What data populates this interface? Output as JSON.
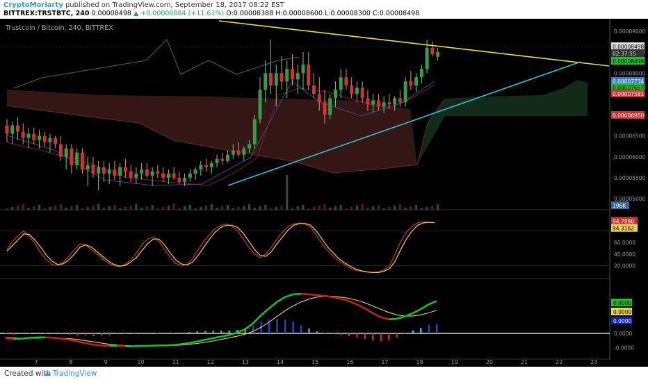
{
  "header": {
    "author": "CryptoMoriarty",
    "published": "published on TradingView.com, September 18, 2017 08:22 EST",
    "symbol": "BITTREX:TRSTBTC, 240",
    "change": "▲ +0.00000884 (+11.61%)",
    "ohlc": "O:0.00008388  H:0.00008600  L:0.00008300  C:0.00008498"
  },
  "footer": {
    "created": "Created with",
    "brand": "TradingView"
  },
  "colors": {
    "up": "#3a9a4c",
    "down": "#d0322f",
    "trend_upper": "#e8e040",
    "trend_lower": "#2ec4d6",
    "cloud_red": "#3a1a16",
    "cloud_green": "#14301c",
    "macd_line": "#19c02a",
    "signal_line": "#e8d44a",
    "stoch_k": "#d0322f",
    "stoch_d": "#e8d44a"
  },
  "chart_data": [
    {
      "type": "candlestick",
      "title": "Trustcoin / Bitcoin, 240, BITTREX",
      "x_ticks": [
        "7",
        "8",
        "9",
        "10",
        "11",
        "12",
        "13",
        "14",
        "15",
        "16",
        "17",
        "18",
        "19",
        "20",
        "21",
        "22",
        "23"
      ],
      "y_ticks": [
        "0.00009000",
        "0.00008500",
        "0.00008000",
        "0.00007500",
        "0.00007000",
        "0.00006500",
        "0.00006000",
        "0.00005500",
        "0.00005000"
      ],
      "ylim": [
        4.92e-05,
        9.05e-05
      ],
      "price_labels": [
        {
          "text": "0.00008498",
          "kind": "current"
        },
        {
          "text": "02:37:55",
          "kind": "countdown"
        },
        {
          "text": "0.00008498",
          "kind": "green"
        },
        {
          "text": "0.00007734",
          "kind": "blue"
        },
        {
          "text": "0.00007657",
          "kind": "green"
        },
        {
          "text": "0.00007581",
          "kind": "red"
        },
        {
          "text": "0.00006950",
          "kind": "red"
        }
      ],
      "volume_label": "196K",
      "candles_ohlc": [
        [
          6.75,
          6.9,
          6.35,
          6.55
        ],
        [
          6.55,
          6.85,
          6.3,
          6.75
        ],
        [
          6.75,
          6.95,
          6.4,
          6.6
        ],
        [
          6.6,
          6.8,
          6.3,
          6.45
        ],
        [
          6.45,
          6.7,
          6.2,
          6.55
        ],
        [
          6.55,
          6.7,
          6.3,
          6.4
        ],
        [
          6.4,
          6.65,
          6.2,
          6.5
        ],
        [
          6.5,
          6.6,
          6.25,
          6.35
        ],
        [
          6.35,
          6.55,
          6.1,
          6.45
        ],
        [
          6.45,
          6.5,
          6.2,
          6.3
        ],
        [
          6.3,
          6.5,
          5.9,
          6.0
        ],
        [
          6.0,
          6.3,
          5.7,
          6.2
        ],
        [
          6.2,
          6.3,
          5.6,
          5.8
        ],
        [
          5.8,
          6.2,
          5.7,
          6.1
        ],
        [
          6.1,
          6.2,
          5.6,
          5.7
        ],
        [
          5.7,
          6.0,
          5.3,
          5.8
        ],
        [
          5.8,
          6.0,
          5.5,
          5.6
        ],
        [
          5.6,
          5.9,
          5.2,
          5.75
        ],
        [
          5.75,
          5.9,
          5.4,
          5.6
        ],
        [
          5.6,
          5.85,
          5.35,
          5.7
        ],
        [
          5.7,
          5.9,
          5.45,
          5.55
        ],
        [
          5.55,
          5.85,
          5.3,
          5.75
        ],
        [
          5.75,
          5.95,
          5.5,
          5.65
        ],
        [
          5.65,
          5.8,
          5.4,
          5.5
        ],
        [
          5.5,
          5.75,
          5.35,
          5.6
        ],
        [
          5.6,
          5.85,
          5.45,
          5.7
        ],
        [
          5.7,
          5.85,
          5.5,
          5.55
        ],
        [
          5.55,
          5.75,
          5.3,
          5.65
        ],
        [
          5.65,
          5.8,
          5.5,
          5.6
        ],
        [
          5.6,
          5.75,
          5.4,
          5.5
        ],
        [
          5.5,
          5.7,
          5.35,
          5.6
        ],
        [
          5.6,
          5.75,
          5.45,
          5.5
        ],
        [
          5.5,
          5.65,
          5.35,
          5.4
        ],
        [
          5.4,
          5.6,
          5.3,
          5.5
        ],
        [
          5.5,
          5.7,
          5.4,
          5.6
        ],
        [
          5.6,
          5.75,
          5.45,
          5.7
        ],
        [
          5.7,
          5.9,
          5.55,
          5.8
        ],
        [
          5.8,
          5.95,
          5.65,
          5.75
        ],
        [
          5.75,
          5.9,
          5.6,
          5.85
        ],
        [
          5.85,
          6.05,
          5.75,
          5.95
        ],
        [
          5.95,
          6.1,
          5.8,
          5.9
        ],
        [
          5.9,
          6.15,
          5.85,
          6.05
        ],
        [
          6.05,
          6.3,
          5.95,
          6.15
        ],
        [
          6.15,
          6.35,
          6.0,
          6.05
        ],
        [
          6.05,
          6.25,
          5.9,
          6.2
        ],
        [
          6.2,
          6.4,
          6.1,
          6.3
        ],
        [
          6.3,
          7.0,
          6.2,
          6.9
        ],
        [
          6.9,
          7.9,
          6.8,
          7.6
        ],
        [
          7.6,
          8.3,
          7.3,
          8.0
        ],
        [
          8.0,
          8.8,
          7.5,
          7.7
        ],
        [
          7.7,
          8.2,
          7.2,
          8.0
        ],
        [
          8.0,
          8.4,
          7.6,
          7.8
        ],
        [
          7.8,
          8.3,
          7.4,
          8.1
        ],
        [
          8.1,
          8.45,
          7.7,
          7.85
        ],
        [
          7.85,
          8.2,
          7.5,
          8.0
        ],
        [
          8.0,
          8.5,
          7.6,
          8.2
        ],
        [
          8.2,
          8.5,
          7.6,
          7.7
        ],
        [
          7.7,
          8.0,
          7.4,
          7.5
        ],
        [
          7.5,
          7.9,
          7.1,
          7.3
        ],
        [
          7.3,
          7.6,
          6.8,
          7.0
        ],
        [
          7.0,
          7.5,
          6.9,
          7.4
        ],
        [
          7.4,
          7.8,
          7.2,
          7.6
        ],
        [
          7.6,
          8.1,
          7.4,
          7.9
        ],
        [
          7.9,
          8.1,
          7.6,
          7.7
        ],
        [
          7.7,
          7.9,
          7.4,
          7.5
        ],
        [
          7.5,
          7.8,
          7.3,
          7.65
        ],
        [
          7.65,
          7.8,
          7.3,
          7.4
        ],
        [
          7.4,
          7.6,
          7.1,
          7.25
        ],
        [
          7.25,
          7.5,
          7.05,
          7.35
        ],
        [
          7.35,
          7.5,
          7.1,
          7.2
        ],
        [
          7.2,
          7.45,
          7.05,
          7.3
        ],
        [
          7.3,
          7.5,
          7.15,
          7.25
        ],
        [
          7.25,
          7.45,
          7.1,
          7.4
        ],
        [
          7.4,
          7.6,
          7.2,
          7.3
        ],
        [
          7.3,
          7.9,
          7.2,
          7.8
        ],
        [
          7.8,
          8.05,
          7.6,
          7.7
        ],
        [
          7.7,
          8.0,
          7.55,
          7.9
        ],
        [
          7.9,
          8.2,
          7.75,
          8.1
        ],
        [
          8.1,
          8.8,
          8.0,
          8.6
        ],
        [
          8.6,
          8.75,
          8.4,
          8.45
        ],
        [
          8.39,
          8.6,
          8.3,
          8.5
        ]
      ]
    },
    {
      "type": "line",
      "title": "Stochastic",
      "y_ticks": [
        "60.0000",
        "40.0000",
        "20.0000"
      ],
      "ylim": [
        0,
        100
      ],
      "value_labels": [
        "94.7880",
        "94.3162"
      ],
      "series": [
        {
          "role": "k",
          "values": [
            48,
            62,
            72,
            80,
            70,
            58,
            42,
            30,
            22,
            20,
            26,
            36,
            48,
            58,
            56,
            48,
            40,
            32,
            24,
            20,
            18,
            22,
            30,
            42,
            56,
            66,
            70,
            62,
            48,
            34,
            24,
            20,
            22,
            32,
            48,
            62,
            74,
            84,
            90,
            92,
            88,
            80,
            66,
            52,
            40,
            34,
            40,
            52,
            66,
            78,
            88,
            92,
            94,
            92,
            86,
            72,
            58,
            46,
            36,
            28,
            22,
            16,
            12,
            10,
            9,
            8,
            9,
            12,
            20,
            40,
            62,
            78,
            88,
            94,
            96,
            95,
            94.8
          ]
        },
        {
          "role": "d",
          "values": [
            45,
            55,
            65,
            75,
            74,
            64,
            52,
            38,
            28,
            22,
            23,
            30,
            40,
            52,
            56,
            52,
            44,
            36,
            28,
            22,
            19,
            20,
            26,
            34,
            46,
            58,
            66,
            66,
            56,
            42,
            30,
            23,
            21,
            26,
            38,
            52,
            66,
            78,
            86,
            90,
            90,
            86,
            76,
            62,
            48,
            38,
            36,
            44,
            58,
            70,
            82,
            90,
            93,
            93,
            90,
            80,
            66,
            52,
            42,
            32,
            25,
            19,
            14,
            11,
            9,
            8,
            8,
            10,
            15,
            28,
            48,
            66,
            80,
            90,
            94,
            95,
            94.3
          ]
        }
      ]
    },
    {
      "type": "line",
      "title": "MACD",
      "y_ticks": [
        "0.0000",
        "-0.0000"
      ],
      "value_labels": [
        "0.0000",
        "0.0000",
        "0.0000"
      ],
      "series": [
        {
          "role": "macd",
          "values": [
            -0.12,
            -0.14,
            -0.13,
            -0.11,
            -0.1,
            -0.1,
            -0.11,
            -0.13,
            -0.16,
            -0.2,
            -0.24,
            -0.28,
            -0.3,
            -0.31,
            -0.31,
            -0.32,
            -0.32,
            -0.31,
            -0.31,
            -0.3,
            -0.3,
            -0.29,
            -0.27,
            -0.24,
            -0.2,
            -0.16,
            -0.12,
            -0.08,
            -0.04,
            0.02,
            0.1,
            0.25,
            0.45,
            0.62,
            0.78,
            0.9,
            0.97,
            0.98,
            0.97,
            0.95,
            0.93,
            0.9,
            0.86,
            0.8,
            0.72,
            0.62,
            0.5,
            0.4,
            0.35,
            0.36,
            0.42,
            0.5,
            0.6,
            0.72,
            0.8
          ]
        },
        {
          "role": "signal",
          "values": [
            -0.1,
            -0.11,
            -0.12,
            -0.12,
            -0.12,
            -0.11,
            -0.11,
            -0.12,
            -0.13,
            -0.15,
            -0.18,
            -0.21,
            -0.24,
            -0.27,
            -0.29,
            -0.3,
            -0.31,
            -0.31,
            -0.31,
            -0.31,
            -0.3,
            -0.3,
            -0.29,
            -0.27,
            -0.25,
            -0.22,
            -0.19,
            -0.15,
            -0.11,
            -0.07,
            -0.02,
            0.05,
            0.15,
            0.28,
            0.42,
            0.56,
            0.68,
            0.78,
            0.85,
            0.9,
            0.92,
            0.92,
            0.9,
            0.87,
            0.82,
            0.76,
            0.68,
            0.6,
            0.52,
            0.46,
            0.43,
            0.43,
            0.46,
            0.51,
            0.57
          ]
        },
        {
          "role": "histogram",
          "values": [
            -0.02,
            -0.03,
            -0.01,
            0.01,
            0.02,
            0.01,
            0,
            -0.01,
            -0.03,
            -0.05,
            -0.06,
            -0.07,
            -0.06,
            -0.04,
            -0.02,
            -0.02,
            -0.01,
            0,
            0,
            0.01,
            0,
            0.01,
            0.02,
            0.03,
            0.05,
            0.06,
            0.07,
            0.07,
            0.07,
            0.09,
            0.12,
            0.2,
            0.3,
            0.34,
            0.36,
            0.34,
            0.29,
            0.2,
            0.12,
            0.05,
            0.01,
            -0.02,
            -0.04,
            -0.07,
            -0.1,
            -0.14,
            -0.18,
            -0.2,
            -0.17,
            -0.1,
            -0.01,
            0.07,
            0.14,
            0.21,
            0.23
          ]
        }
      ]
    }
  ]
}
